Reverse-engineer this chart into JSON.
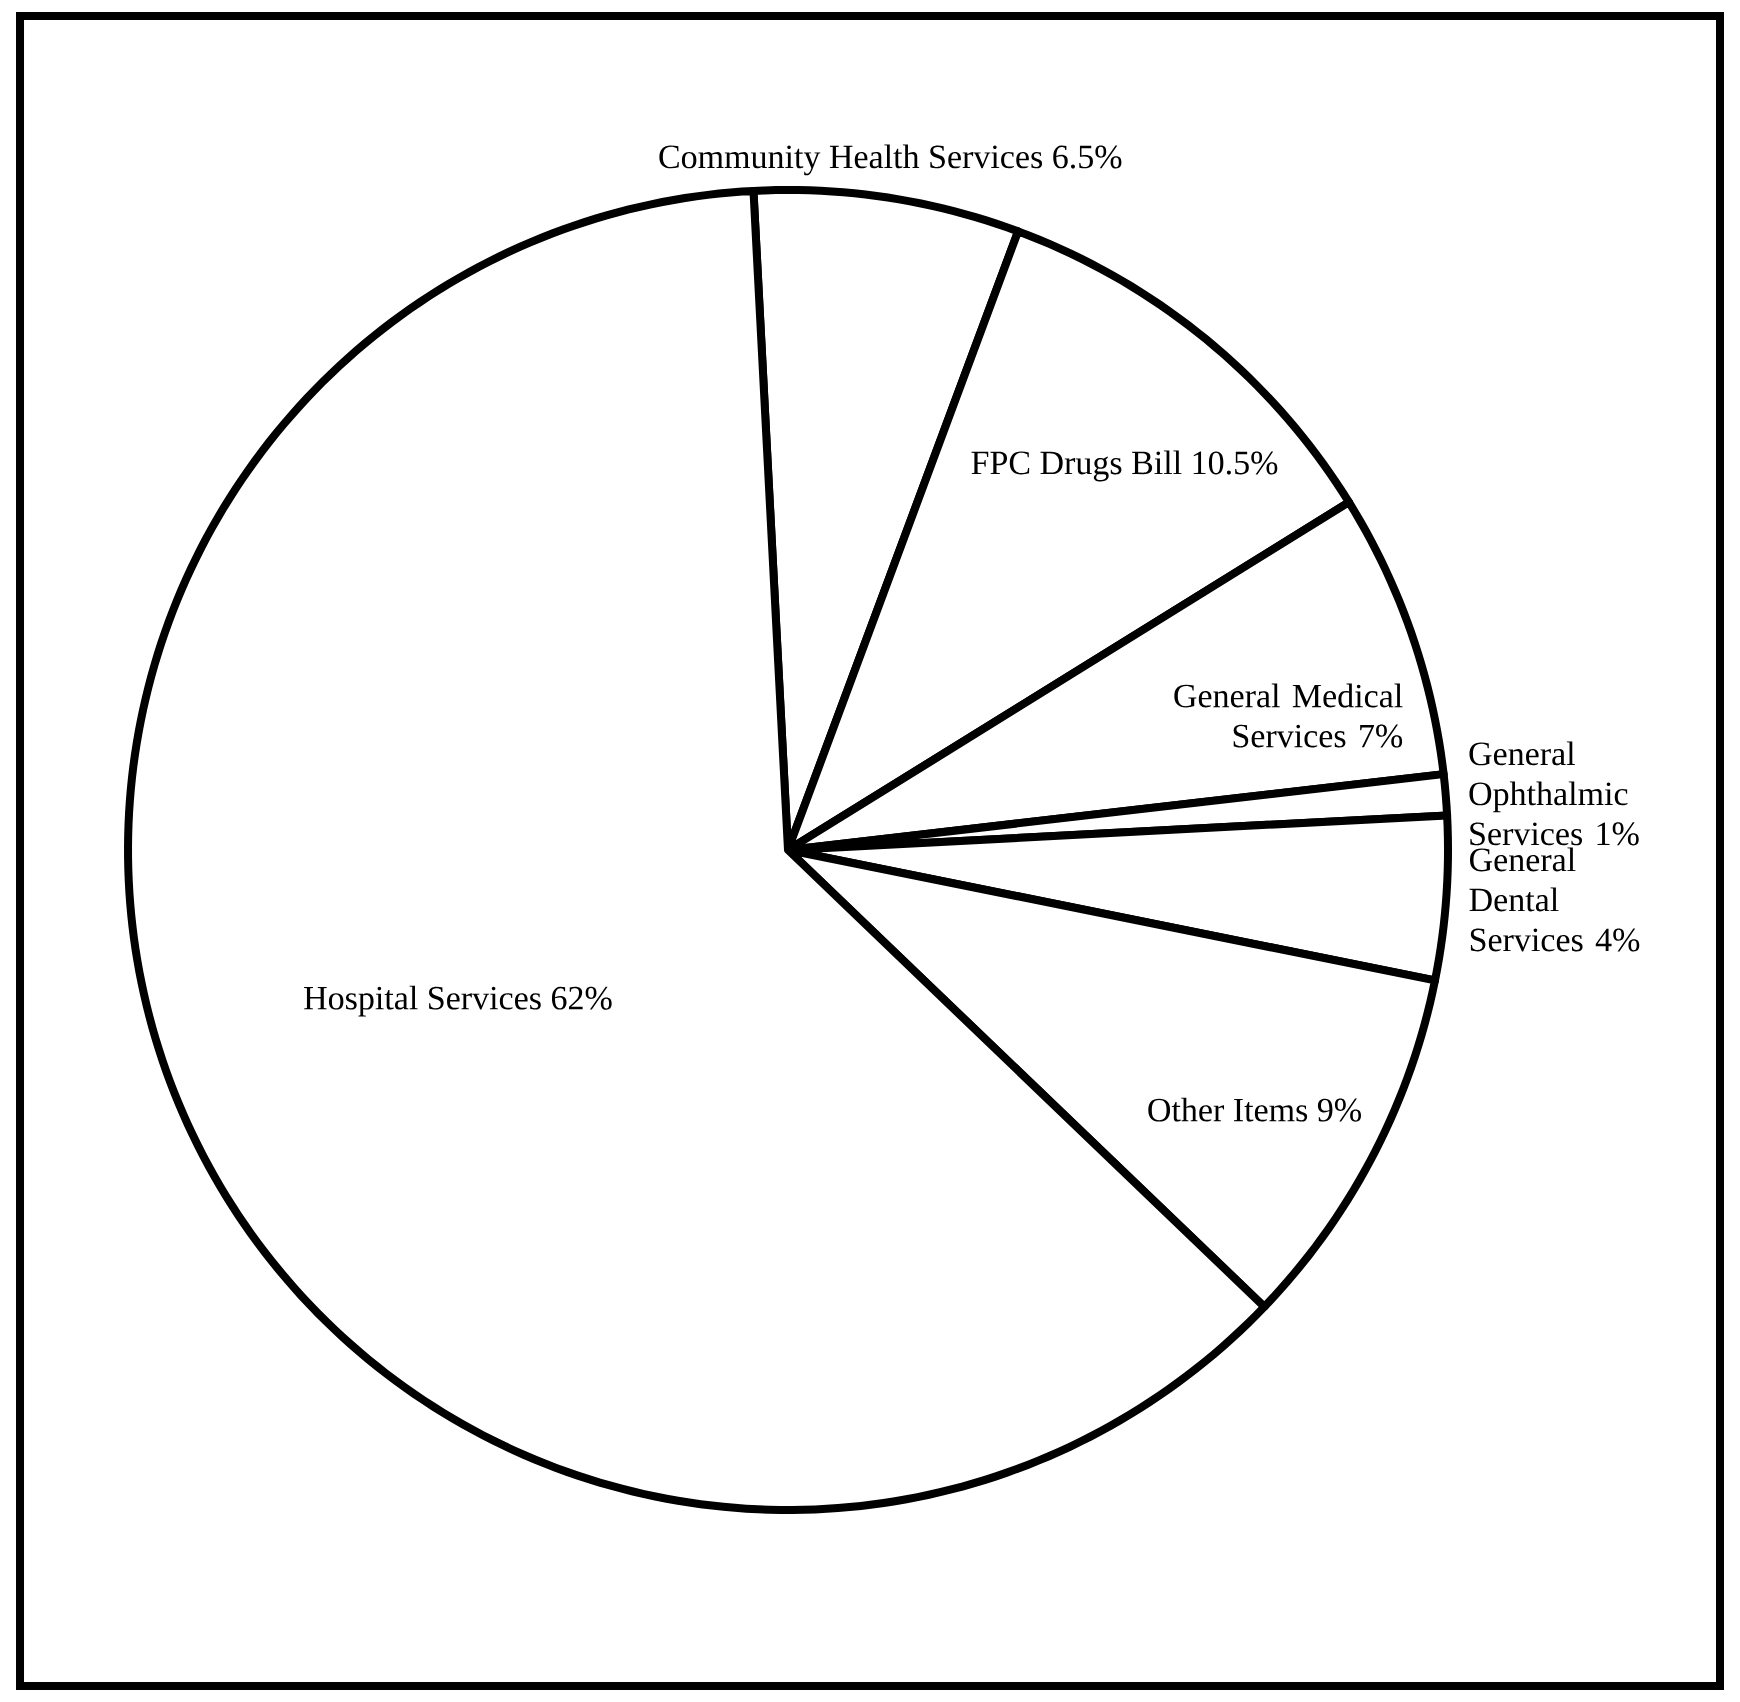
{
  "chart_data": {
    "type": "pie",
    "categories": [
      "Community Health Services 6.5%",
      "FPC Drugs Bill 10.5%",
      "General Medical Services 7%",
      "General Ophthalmic Services 1%",
      "General Dental Services 4%",
      "Other Items 9%",
      "Hospital Services 62%"
    ],
    "values": [
      6.5,
      10.5,
      7,
      1,
      4,
      9,
      62
    ],
    "colors": [
      "#ffffff",
      "#ffffff",
      "#ffffff",
      "#ffffff",
      "#ffffff",
      "#ffffff",
      "#ffffff"
    ]
  }
}
